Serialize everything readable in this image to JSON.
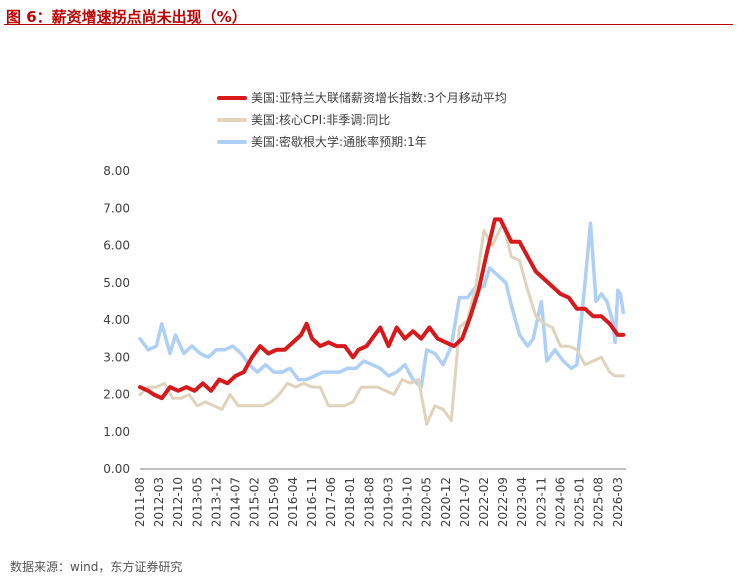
{
  "figure_title": "图 6：薪资增速拐点尚未出现（%）",
  "source_note": "数据来源：wind，东方证券研究",
  "chart_data": {
    "type": "line",
    "title": "",
    "xlabel": "",
    "ylabel": "",
    "ylim": [
      0,
      8
    ],
    "y_ticks": [
      "0.00",
      "1.00",
      "2.00",
      "3.00",
      "4.00",
      "5.00",
      "6.00",
      "7.00",
      "8.00"
    ],
    "x_range": [
      "2011-08",
      "2026-06"
    ],
    "x_tick_labels": [
      "2011-08",
      "2012-03",
      "2012-10",
      "2013-05",
      "2013-12",
      "2014-07",
      "2015-02",
      "2015-09",
      "2016-04",
      "2016-11",
      "2017-06",
      "2018-01",
      "2018-08",
      "2019-03",
      "2019-10",
      "2020-05",
      "2020-12",
      "2021-07",
      "2022-02",
      "2022-09",
      "2023-04",
      "2023-11",
      "2024-06",
      "2025-01",
      "2025-08",
      "2026-03"
    ],
    "grid": false,
    "legend_position": "top",
    "series": [
      {
        "name": "美国:亚特兰大联储薪资增长指数:3个月移动平均",
        "color": "#d7191c",
        "points": [
          [
            "2011-08",
            2.2
          ],
          [
            "2011-11",
            2.1
          ],
          [
            "2012-01",
            2.0
          ],
          [
            "2012-04",
            1.9
          ],
          [
            "2012-07",
            2.2
          ],
          [
            "2012-10",
            2.1
          ],
          [
            "2013-01",
            2.2
          ],
          [
            "2013-04",
            2.1
          ],
          [
            "2013-07",
            2.3
          ],
          [
            "2013-10",
            2.1
          ],
          [
            "2014-01",
            2.4
          ],
          [
            "2014-04",
            2.3
          ],
          [
            "2014-07",
            2.5
          ],
          [
            "2014-10",
            2.6
          ],
          [
            "2015-01",
            3.0
          ],
          [
            "2015-04",
            3.3
          ],
          [
            "2015-07",
            3.1
          ],
          [
            "2015-10",
            3.2
          ],
          [
            "2016-01",
            3.2
          ],
          [
            "2016-04",
            3.4
          ],
          [
            "2016-07",
            3.6
          ],
          [
            "2016-09",
            3.9
          ],
          [
            "2016-11",
            3.5
          ],
          [
            "2017-02",
            3.3
          ],
          [
            "2017-05",
            3.4
          ],
          [
            "2017-08",
            3.3
          ],
          [
            "2017-11",
            3.3
          ],
          [
            "2018-02",
            3.0
          ],
          [
            "2018-04",
            3.2
          ],
          [
            "2018-07",
            3.3
          ],
          [
            "2018-09",
            3.5
          ],
          [
            "2018-12",
            3.8
          ],
          [
            "2019-03",
            3.3
          ],
          [
            "2019-06",
            3.8
          ],
          [
            "2019-09",
            3.5
          ],
          [
            "2019-12",
            3.7
          ],
          [
            "2020-03",
            3.5
          ],
          [
            "2020-06",
            3.8
          ],
          [
            "2020-09",
            3.5
          ],
          [
            "2020-12",
            3.4
          ],
          [
            "2021-03",
            3.3
          ],
          [
            "2021-06",
            3.5
          ],
          [
            "2021-09",
            4.1
          ],
          [
            "2021-12",
            4.8
          ],
          [
            "2022-03",
            5.8
          ],
          [
            "2022-06",
            6.7
          ],
          [
            "2022-08",
            6.7
          ],
          [
            "2022-10",
            6.4
          ],
          [
            "2022-12",
            6.1
          ],
          [
            "2023-03",
            6.1
          ],
          [
            "2023-06",
            5.7
          ],
          [
            "2023-09",
            5.3
          ],
          [
            "2023-12",
            5.1
          ],
          [
            "2024-03",
            4.9
          ],
          [
            "2024-06",
            4.7
          ],
          [
            "2024-09",
            4.6
          ],
          [
            "2024-12",
            4.3
          ],
          [
            "2025-03",
            4.3
          ],
          [
            "2025-06",
            4.1
          ],
          [
            "2025-09",
            4.1
          ],
          [
            "2025-12",
            3.9
          ],
          [
            "2026-03",
            3.6
          ],
          [
            "2026-05",
            3.6
          ]
        ]
      },
      {
        "name": "美国:核心CPI:非季调:同比",
        "color": "#e0d3bc",
        "points": [
          [
            "2011-08",
            2.0
          ],
          [
            "2011-11",
            2.2
          ],
          [
            "2012-02",
            2.2
          ],
          [
            "2012-05",
            2.3
          ],
          [
            "2012-08",
            1.9
          ],
          [
            "2012-11",
            1.9
          ],
          [
            "2013-02",
            2.0
          ],
          [
            "2013-05",
            1.7
          ],
          [
            "2013-08",
            1.8
          ],
          [
            "2013-11",
            1.7
          ],
          [
            "2014-02",
            1.6
          ],
          [
            "2014-05",
            2.0
          ],
          [
            "2014-08",
            1.7
          ],
          [
            "2014-11",
            1.7
          ],
          [
            "2015-02",
            1.7
          ],
          [
            "2015-05",
            1.7
          ],
          [
            "2015-08",
            1.8
          ],
          [
            "2015-11",
            2.0
          ],
          [
            "2016-02",
            2.3
          ],
          [
            "2016-05",
            2.2
          ],
          [
            "2016-08",
            2.3
          ],
          [
            "2016-11",
            2.2
          ],
          [
            "2017-02",
            2.2
          ],
          [
            "2017-05",
            1.7
          ],
          [
            "2017-08",
            1.7
          ],
          [
            "2017-11",
            1.7
          ],
          [
            "2018-02",
            1.8
          ],
          [
            "2018-05",
            2.2
          ],
          [
            "2018-08",
            2.2
          ],
          [
            "2018-11",
            2.2
          ],
          [
            "2019-02",
            2.1
          ],
          [
            "2019-05",
            2.0
          ],
          [
            "2019-08",
            2.4
          ],
          [
            "2019-11",
            2.3
          ],
          [
            "2020-02",
            2.4
          ],
          [
            "2020-05",
            1.2
          ],
          [
            "2020-08",
            1.7
          ],
          [
            "2020-11",
            1.6
          ],
          [
            "2021-02",
            1.3
          ],
          [
            "2021-05",
            3.8
          ],
          [
            "2021-08",
            4.0
          ],
          [
            "2021-11",
            4.9
          ],
          [
            "2022-02",
            6.4
          ],
          [
            "2022-05",
            6.0
          ],
          [
            "2022-09",
            6.6
          ],
          [
            "2022-12",
            5.7
          ],
          [
            "2023-03",
            5.6
          ],
          [
            "2023-06",
            4.8
          ],
          [
            "2023-09",
            4.1
          ],
          [
            "2023-12",
            3.9
          ],
          [
            "2024-03",
            3.8
          ],
          [
            "2024-06",
            3.3
          ],
          [
            "2024-09",
            3.3
          ],
          [
            "2024-12",
            3.2
          ],
          [
            "2025-03",
            2.8
          ],
          [
            "2025-06",
            2.9
          ],
          [
            "2025-09",
            3.0
          ],
          [
            "2025-12",
            2.6
          ],
          [
            "2026-02",
            2.5
          ],
          [
            "2026-05",
            2.5
          ]
        ]
      },
      {
        "name": "美国:密歇根大学:通胀率预期:1年",
        "color": "#aed0f6",
        "points": [
          [
            "2011-08",
            3.5
          ],
          [
            "2011-11",
            3.2
          ],
          [
            "2012-02",
            3.3
          ],
          [
            "2012-04",
            3.9
          ],
          [
            "2012-07",
            3.1
          ],
          [
            "2012-09",
            3.6
          ],
          [
            "2012-12",
            3.1
          ],
          [
            "2013-03",
            3.3
          ],
          [
            "2013-06",
            3.1
          ],
          [
            "2013-09",
            3.0
          ],
          [
            "2013-12",
            3.2
          ],
          [
            "2014-03",
            3.2
          ],
          [
            "2014-06",
            3.3
          ],
          [
            "2014-09",
            3.1
          ],
          [
            "2014-12",
            2.8
          ],
          [
            "2015-03",
            2.6
          ],
          [
            "2015-06",
            2.8
          ],
          [
            "2015-09",
            2.6
          ],
          [
            "2015-12",
            2.6
          ],
          [
            "2016-03",
            2.7
          ],
          [
            "2016-06",
            2.4
          ],
          [
            "2016-09",
            2.4
          ],
          [
            "2016-12",
            2.5
          ],
          [
            "2017-03",
            2.6
          ],
          [
            "2017-06",
            2.6
          ],
          [
            "2017-09",
            2.6
          ],
          [
            "2017-12",
            2.7
          ],
          [
            "2018-03",
            2.7
          ],
          [
            "2018-06",
            2.9
          ],
          [
            "2018-09",
            2.8
          ],
          [
            "2018-12",
            2.7
          ],
          [
            "2019-03",
            2.5
          ],
          [
            "2019-06",
            2.6
          ],
          [
            "2019-09",
            2.8
          ],
          [
            "2019-12",
            2.4
          ],
          [
            "2020-03",
            2.2
          ],
          [
            "2020-05",
            3.2
          ],
          [
            "2020-08",
            3.1
          ],
          [
            "2020-11",
            2.8
          ],
          [
            "2021-02",
            3.3
          ],
          [
            "2021-05",
            4.6
          ],
          [
            "2021-08",
            4.6
          ],
          [
            "2021-11",
            4.9
          ],
          [
            "2022-02",
            4.9
          ],
          [
            "2022-04",
            5.4
          ],
          [
            "2022-07",
            5.2
          ],
          [
            "2022-10",
            5.0
          ],
          [
            "2022-12",
            4.4
          ],
          [
            "2023-03",
            3.6
          ],
          [
            "2023-06",
            3.3
          ],
          [
            "2023-08",
            3.5
          ],
          [
            "2023-11",
            4.5
          ],
          [
            "2024-01",
            2.9
          ],
          [
            "2024-04",
            3.2
          ],
          [
            "2024-07",
            2.9
          ],
          [
            "2024-10",
            2.7
          ],
          [
            "2024-12",
            2.8
          ],
          [
            "2025-03",
            5.0
          ],
          [
            "2025-05",
            6.6
          ],
          [
            "2025-07",
            4.5
          ],
          [
            "2025-09",
            4.7
          ],
          [
            "2025-11",
            4.5
          ],
          [
            "2026-01",
            4.0
          ],
          [
            "2026-02",
            3.4
          ],
          [
            "2026-03",
            4.8
          ],
          [
            "2026-04",
            4.7
          ],
          [
            "2026-05",
            4.2
          ]
        ]
      }
    ]
  }
}
